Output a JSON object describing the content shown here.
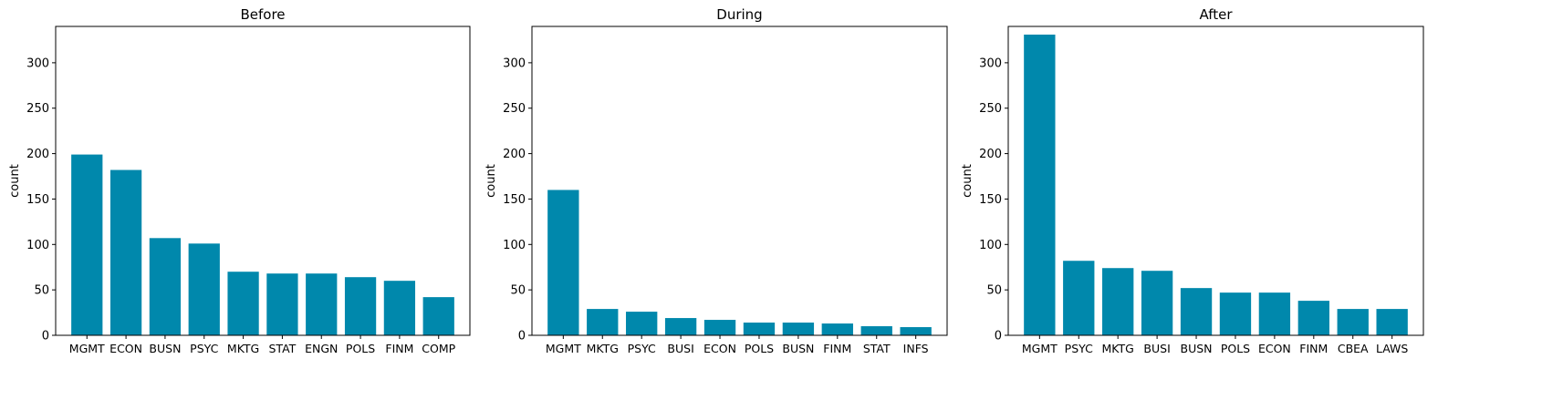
{
  "chart_data": [
    {
      "type": "bar",
      "title": "Before",
      "xlabel": "",
      "ylabel": "count",
      "ylim": [
        0,
        340
      ],
      "yticks": [
        0,
        50,
        100,
        150,
        200,
        250,
        300
      ],
      "bar_color": "#0088ac",
      "categories": [
        "MGMT",
        "ECON",
        "BUSN",
        "PSYC",
        "MKTG",
        "STAT",
        "ENGN",
        "POLS",
        "FINM",
        "COMP"
      ],
      "values": [
        199,
        182,
        107,
        101,
        70,
        68,
        68,
        64,
        60,
        42
      ]
    },
    {
      "type": "bar",
      "title": "During",
      "xlabel": "",
      "ylabel": "count",
      "ylim": [
        0,
        340
      ],
      "yticks": [
        0,
        50,
        100,
        150,
        200,
        250,
        300
      ],
      "bar_color": "#0088ac",
      "categories": [
        "MGMT",
        "MKTG",
        "PSYC",
        "BUSI",
        "ECON",
        "POLS",
        "BUSN",
        "FINM",
        "STAT",
        "INFS"
      ],
      "values": [
        160,
        29,
        26,
        19,
        17,
        14,
        14,
        13,
        10,
        9
      ]
    },
    {
      "type": "bar",
      "title": "After",
      "xlabel": "",
      "ylabel": "count",
      "ylim": [
        0,
        340
      ],
      "yticks": [
        0,
        50,
        100,
        150,
        200,
        250,
        300
      ],
      "bar_color": "#0088ac",
      "categories": [
        "MGMT",
        "PSYC",
        "MKTG",
        "BUSI",
        "BUSN",
        "POLS",
        "ECON",
        "FINM",
        "CBEA",
        "LAWS"
      ],
      "values": [
        331,
        82,
        74,
        71,
        52,
        47,
        47,
        38,
        29,
        29
      ]
    }
  ]
}
